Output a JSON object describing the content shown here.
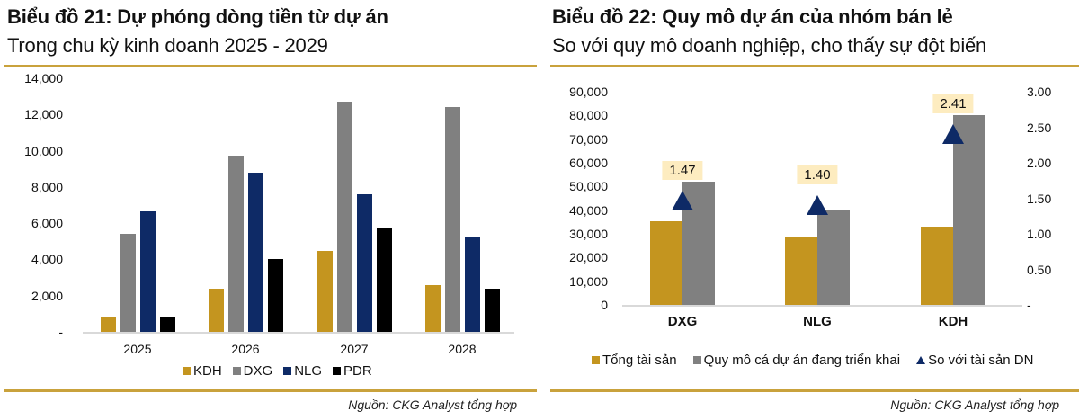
{
  "chart_data": [
    {
      "type": "bar",
      "title": "Biểu đồ 21: Dự phóng dòng tiền từ dự án",
      "subtitle": "Trong chu kỳ kinh doanh 2025 - 2029",
      "xlabel": "",
      "ylabel": "",
      "ylim": [
        0,
        14000
      ],
      "yticks": [
        "-",
        "2,000",
        "4,000",
        "6,000",
        "8,000",
        "10,000",
        "12,000",
        "14,000"
      ],
      "categories": [
        "2025",
        "2026",
        "2027",
        "2028"
      ],
      "series": [
        {
          "name": "KDH",
          "color": "#c4951f",
          "values": [
            850,
            2400,
            4450,
            2600
          ]
        },
        {
          "name": "DXG",
          "color": "#808080",
          "values": [
            5400,
            9700,
            12700,
            12400
          ]
        },
        {
          "name": "NLG",
          "color": "#0e2a66",
          "values": [
            6650,
            8800,
            7600,
            5200
          ]
        },
        {
          "name": "PDR",
          "color": "#000000",
          "values": [
            800,
            4000,
            5700,
            2400
          ]
        }
      ],
      "grid": false,
      "legend_position": "bottom",
      "source": "Nguồn: CKG Analyst tổng hợp"
    },
    {
      "type": "bar",
      "title": "Biểu đồ 22: Quy mô dự án của nhóm bán lẻ",
      "subtitle": "So với quy mô doanh nghiệp, cho thấy sự đột biến",
      "xlabel": "",
      "ylabel": "",
      "ylim": [
        0,
        90000
      ],
      "y2lim": [
        0,
        3.0
      ],
      "yticks": [
        "0",
        "10,000",
        "20,000",
        "30,000",
        "40,000",
        "50,000",
        "60,000",
        "70,000",
        "80,000",
        "90,000"
      ],
      "y2ticks": [
        "-",
        "0.50",
        "1.00",
        "1.50",
        "2.00",
        "2.50",
        "3.00"
      ],
      "categories": [
        "DXG",
        "NLG",
        "KDH"
      ],
      "series": [
        {
          "name": "Tổng tài sản",
          "color": "#c4951f",
          "axis": "left",
          "values": [
            35300,
            28500,
            33000
          ]
        },
        {
          "name": "Quy mô cá dự án đang triển khai",
          "color": "#808080",
          "axis": "left",
          "values": [
            52000,
            40000,
            80000
          ]
        },
        {
          "name": "So với tài sản DN",
          "color": "#0e2a66",
          "axis": "right",
          "marker": "triangle",
          "values": [
            1.47,
            1.4,
            2.41
          ],
          "labels": [
            "1.47",
            "1.40",
            "2.41"
          ]
        }
      ],
      "grid": false,
      "legend_position": "bottom",
      "source": "Nguồn: CKG Analyst tổng hợp"
    }
  ],
  "panel1": {
    "title": "Biểu đồ 21: Dự phóng dòng tiền từ dự án",
    "subtitle": "Trong chu kỳ kinh doanh 2025 - 2029",
    "source": "Nguồn: CKG Analyst tổng hợp"
  },
  "panel2": {
    "title": "Biểu đồ 22: Quy mô dự án của nhóm bán lẻ",
    "subtitle": "So với quy mô doanh nghiệp, cho thấy sự đột biến",
    "source": "Nguồn: CKG Analyst tổng hợp"
  }
}
